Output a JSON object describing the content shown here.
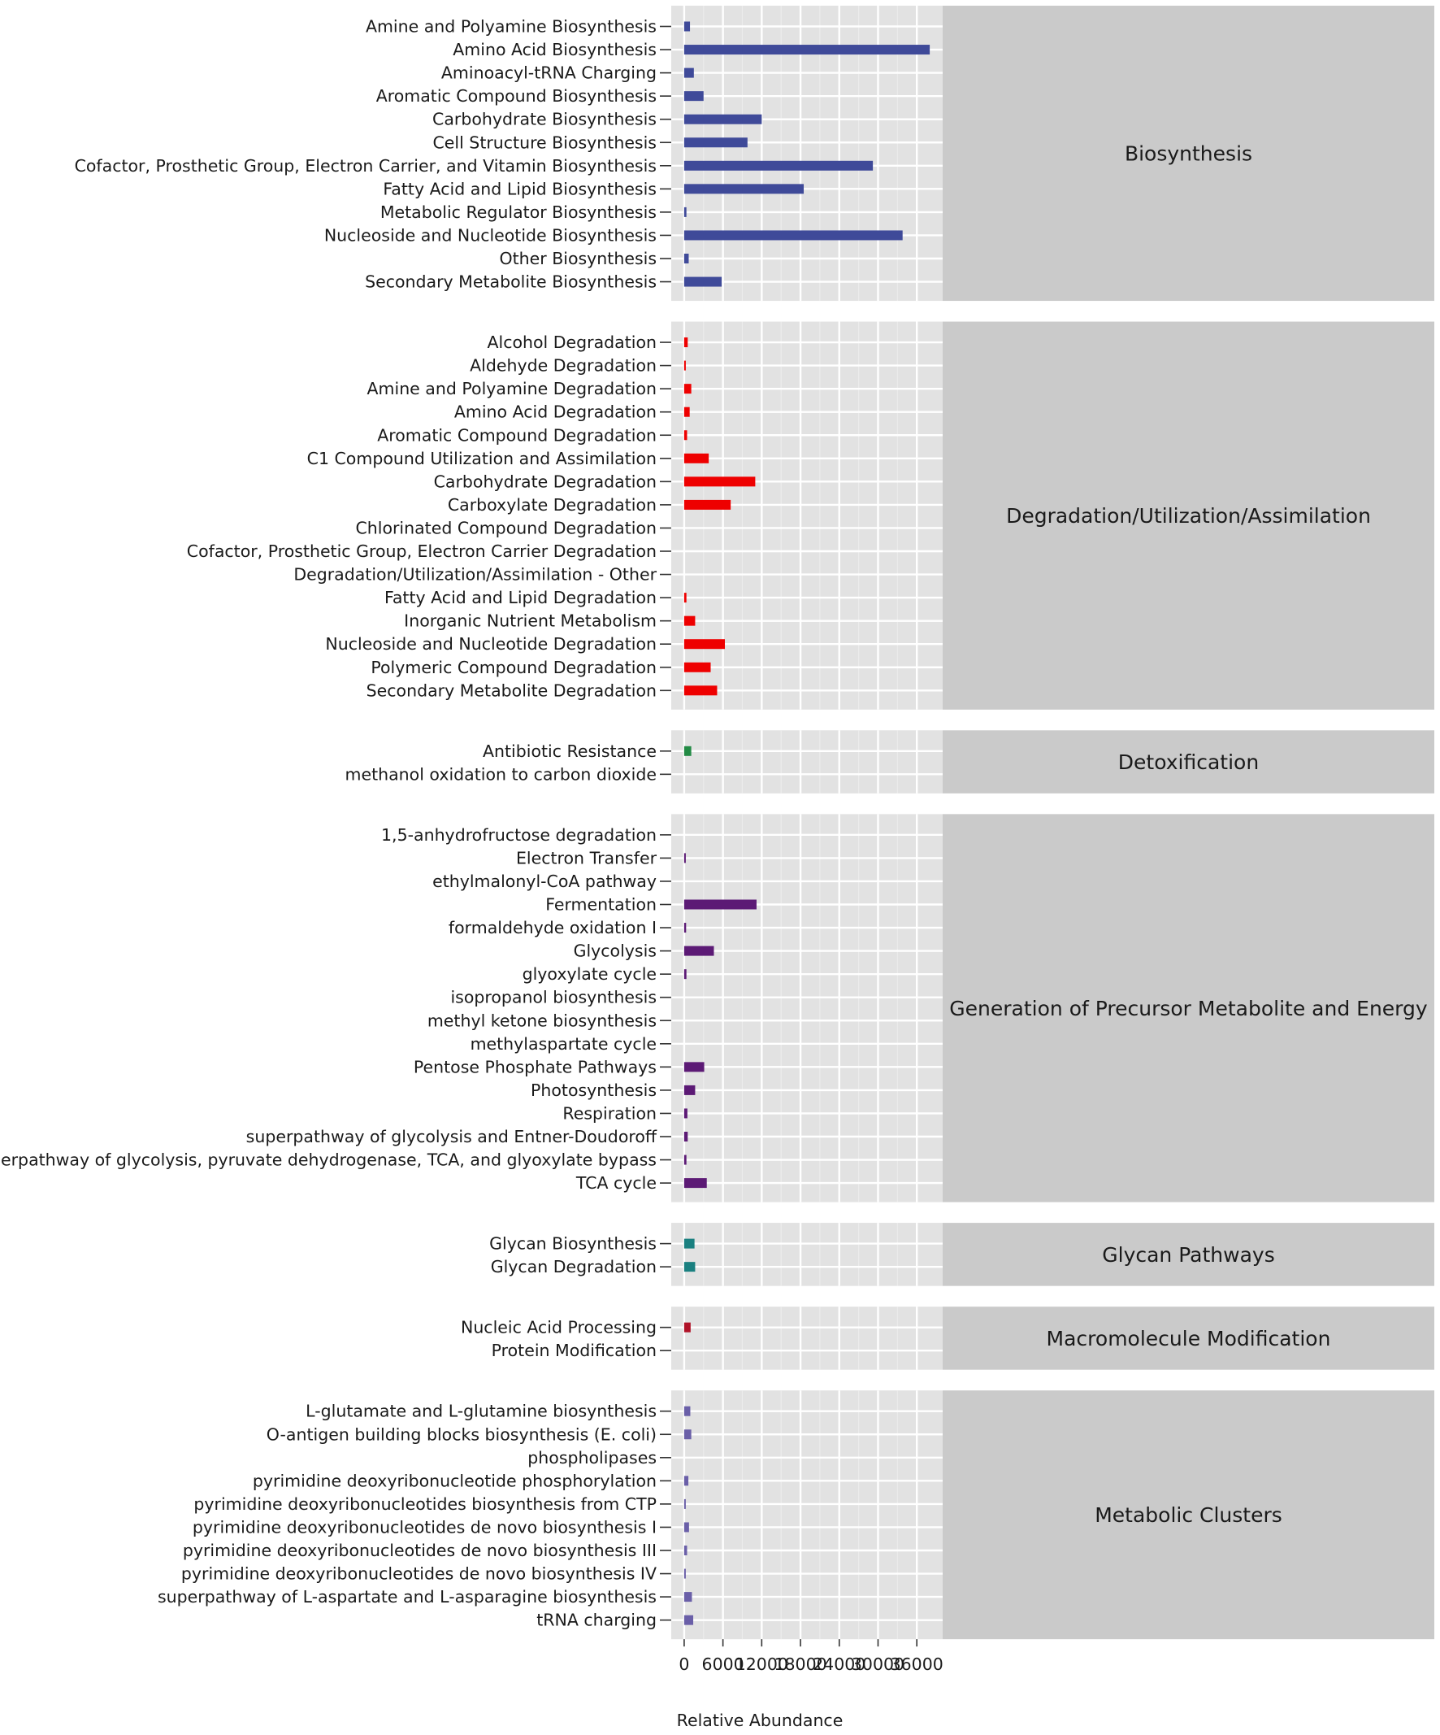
{
  "chart_data": {
    "type": "bar",
    "orientation": "horizontal",
    "faceted": true,
    "xlabel": "Relative Abundance",
    "ylabel": "",
    "xlim": [
      -2000,
      40000
    ],
    "xticks": [
      0,
      6000,
      12000,
      18000,
      24000,
      30000,
      36000
    ],
    "xtick_labels": [
      "0",
      "6000",
      "12000",
      "18000",
      "24000",
      "30000",
      "36000"
    ],
    "grid": true,
    "legend": "none",
    "panels": [
      {
        "name": "Biosynthesis",
        "color": "#3F4A99",
        "categories": [
          "Amine and Polyamine Biosynthesis",
          "Amino Acid Biosynthesis",
          "Aminoacyl-tRNA Charging",
          "Aromatic Compound Biosynthesis",
          "Carbohydrate Biosynthesis",
          "Cell Structure Biosynthesis",
          "Cofactor, Prosthetic Group, Electron Carrier, and Vitamin Biosynthesis",
          "Fatty Acid and Lipid Biosynthesis",
          "Metabolic Regulator Biosynthesis",
          "Nucleoside and Nucleotide Biosynthesis",
          "Other Biosynthesis",
          "Secondary Metabolite Biosynthesis"
        ],
        "values": [
          900,
          38000,
          1500,
          3000,
          12000,
          9800,
          29200,
          18500,
          350,
          33800,
          700,
          5800
        ]
      },
      {
        "name": "Degradation/Utilization/Assimilation",
        "color": "#EE0000",
        "categories": [
          "Alcohol Degradation",
          "Aldehyde Degradation",
          "Amine and Polyamine Degradation",
          "Amino Acid Degradation",
          "Aromatic Compound Degradation",
          "C1 Compound Utilization and Assimilation",
          "Carbohydrate Degradation",
          "Carboxylate Degradation",
          "Chlorinated Compound Degradation",
          "Cofactor, Prosthetic Group, Electron Carrier Degradation",
          "Degradation/Utilization/Assimilation - Other",
          "Fatty Acid and Lipid Degradation",
          "Inorganic Nutrient Metabolism",
          "Nucleoside and Nucleotide Degradation",
          "Polymeric Compound Degradation",
          "Secondary Metabolite Degradation"
        ],
        "values": [
          550,
          150,
          1100,
          850,
          450,
          3800,
          11000,
          7200,
          0,
          0,
          0,
          350,
          1700,
          6300,
          4100,
          5100
        ]
      },
      {
        "name": "Detoxification",
        "color": "#238B45",
        "categories": [
          "Antibiotic Resistance",
          "methanol oxidation to carbon dioxide"
        ],
        "values": [
          1100,
          0
        ]
      },
      {
        "name": "Generation of Precursor Metabolite and Energy",
        "color": "#5C1A75",
        "categories": [
          "1,5-anhydrofructose degradation",
          "Electron Transfer",
          "ethylmalonyl-CoA pathway",
          "Fermentation",
          "formaldehyde oxidation I",
          "Glycolysis",
          "glyoxylate cycle",
          "isopropanol biosynthesis",
          "methyl ketone biosynthesis",
          "methylaspartate cycle",
          "Pentose Phosphate Pathways",
          "Photosynthesis",
          "Respiration",
          "superpathway of glycolysis and Entner-Doudoroff",
          "superpathway of glycolysis, pyruvate dehydrogenase, TCA, and glyoxylate bypass",
          "TCA cycle"
        ],
        "values": [
          0,
          150,
          0,
          11200,
          300,
          4600,
          350,
          0,
          0,
          0,
          3100,
          1700,
          500,
          550,
          350,
          3500
        ]
      },
      {
        "name": "Glycan Pathways",
        "color": "#1A8080",
        "categories": [
          "Glycan Biosynthesis",
          "Glycan Degradation"
        ],
        "values": [
          1600,
          1700
        ]
      },
      {
        "name": "Macromolecule Modification",
        "color": "#B01228",
        "categories": [
          "Nucleic Acid Processing",
          "Protein Modification"
        ],
        "values": [
          1000,
          0
        ]
      },
      {
        "name": "Metabolic Clusters",
        "color": "#6A5FA8",
        "categories": [
          "L-glutamate and L-glutamine biosynthesis",
          "O-antigen building blocks biosynthesis (E. coli)",
          "phospholipases",
          "pyrimidine deoxyribonucleotide phosphorylation",
          "pyrimidine deoxyribonucleotides biosynthesis from CTP",
          "pyrimidine deoxyribonucleotides de novo biosynthesis I",
          "pyrimidine deoxyribonucleotides de novo biosynthesis III",
          "pyrimidine deoxyribonucleotides de novo biosynthesis IV",
          "superpathway of L-aspartate and L-asparagine biosynthesis",
          "tRNA charging"
        ],
        "values": [
          950,
          1100,
          0,
          650,
          200,
          750,
          450,
          150,
          1200,
          1400
        ]
      }
    ]
  }
}
